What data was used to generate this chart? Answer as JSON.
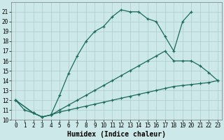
{
  "line1_x": [
    0,
    1,
    2,
    3,
    4,
    5,
    6,
    7,
    8,
    9,
    10,
    11,
    12,
    13,
    14,
    15,
    16,
    17,
    18,
    19,
    20
  ],
  "line1_y": [
    12,
    11,
    10.7,
    10.3,
    10.5,
    12.5,
    14.7,
    16.5,
    18,
    19,
    19.5,
    20.5,
    21.2,
    21.0,
    21.0,
    20.3,
    20.0,
    18.5,
    17.0,
    20.0,
    21.0
  ],
  "line2_x": [
    0,
    2,
    3,
    4,
    5,
    6,
    7,
    8,
    9,
    10,
    11,
    12,
    13,
    14,
    15,
    16,
    17,
    18,
    19,
    20,
    21,
    22,
    23
  ],
  "line2_y": [
    12,
    10.7,
    10.3,
    10.5,
    11.0,
    11.5,
    12.0,
    12.5,
    13.0,
    13.5,
    14.0,
    14.5,
    15.0,
    15.5,
    16.0,
    16.5,
    17.0,
    16.0,
    16.0,
    16.0,
    15.5,
    14.8,
    14.0
  ],
  "line3_x": [
    0,
    2,
    3,
    4,
    5,
    6,
    7,
    8,
    9,
    10,
    11,
    12,
    13,
    14,
    15,
    16,
    17,
    18,
    19,
    20,
    21,
    22,
    23
  ],
  "line3_y": [
    12,
    10.7,
    10.3,
    10.5,
    10.8,
    11.0,
    11.2,
    11.4,
    11.6,
    11.8,
    12.0,
    12.2,
    12.4,
    12.6,
    12.8,
    13.0,
    13.2,
    13.4,
    13.5,
    13.6,
    13.7,
    13.8,
    14.0
  ],
  "line_color": "#1a6b5a",
  "bg_color": "#cde8e8",
  "grid_color": "#aecccc",
  "xlabel": "Humidex (Indice chaleur)",
  "xlim": [
    0,
    23
  ],
  "ylim": [
    10,
    22
  ],
  "xticks": [
    0,
    1,
    2,
    3,
    4,
    5,
    6,
    7,
    8,
    9,
    10,
    11,
    12,
    13,
    14,
    15,
    16,
    17,
    18,
    19,
    20,
    21,
    22,
    23
  ],
  "yticks": [
    10,
    11,
    12,
    13,
    14,
    15,
    16,
    17,
    18,
    19,
    20,
    21
  ],
  "tick_fontsize": 5.5,
  "label_fontsize": 7
}
